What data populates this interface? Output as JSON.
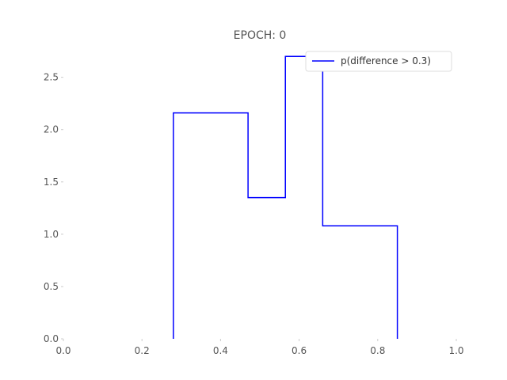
{
  "chart_data": {
    "type": "histogram-step",
    "title": "EPOCH: 0",
    "xlabel": "",
    "ylabel": "",
    "xlim": [
      0.0,
      1.0
    ],
    "ylim": [
      0.0,
      2.8
    ],
    "x_ticks": [
      "0.0",
      "0.2",
      "0.4",
      "0.6",
      "0.8",
      "1.0"
    ],
    "y_ticks": [
      "0.0",
      "0.5",
      "1.0",
      "1.5",
      "2.0",
      "2.5"
    ],
    "grid": false,
    "legend_position": "upper-right",
    "series": [
      {
        "name": "p(difference > 0.3)",
        "color": "#0000ff",
        "bin_edges": [
          0.28,
          0.47,
          0.565,
          0.66,
          0.85
        ],
        "values": [
          2.16,
          1.35,
          2.7,
          1.08
        ]
      }
    ]
  }
}
